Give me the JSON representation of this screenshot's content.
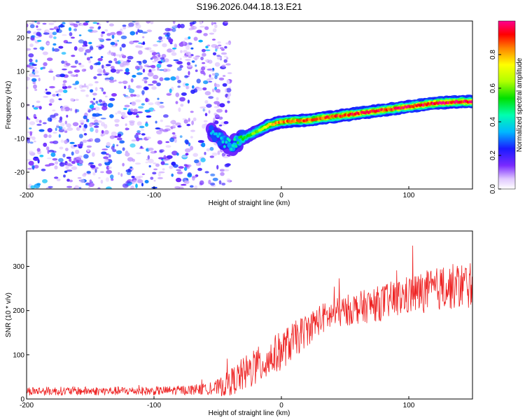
{
  "title": "S196.2026.044.18.13.E21",
  "chart_data": [
    {
      "type": "heatmap",
      "name": "spectrogram",
      "xlabel": "Height of straight line (km)",
      "ylabel": "Frequency (Hz)",
      "xlim": [
        -200,
        150
      ],
      "ylim": [
        -25,
        25
      ],
      "xticks": [
        -200,
        -100,
        0,
        100
      ],
      "yticks": [
        -20,
        -10,
        0,
        10,
        20
      ],
      "colorbar": {
        "label": "Normalized spectral amplitude",
        "range": [
          0,
          1
        ],
        "ticks": [
          0.0,
          0.2,
          0.4,
          0.6,
          0.8
        ]
      },
      "noise_region_x": [
        -200,
        -40
      ],
      "ridge": {
        "x": [
          -55,
          -45,
          -38,
          -30,
          -20,
          -10,
          0,
          20,
          40,
          60,
          80,
          100,
          120,
          140,
          150
        ],
        "freq_hz": [
          -8,
          -11,
          -12,
          -10,
          -8,
          -6,
          -5,
          -4.5,
          -3.5,
          -2.5,
          -1.5,
          -0.5,
          0.5,
          1,
          1
        ],
        "amplitude": [
          0.3,
          0.35,
          0.4,
          0.5,
          0.6,
          0.75,
          0.85,
          0.9,
          0.92,
          0.95,
          0.95,
          0.97,
          1.0,
          1.0,
          1.0
        ]
      }
    },
    {
      "type": "line",
      "name": "snr",
      "xlabel": "Height of straight line (km)",
      "ylabel": "SNR (10 * v/v)",
      "xlim": [
        -200,
        150
      ],
      "ylim": [
        0,
        380
      ],
      "xticks": [
        -200,
        -100,
        0,
        100
      ],
      "yticks": [
        0,
        100,
        200,
        300
      ],
      "series": [
        {
          "name": "SNR",
          "color": "#ee2222",
          "trend_x": [
            -200,
            -100,
            -55,
            -45,
            -30,
            -15,
            0,
            15,
            30,
            50,
            75,
            100,
            125,
            150
          ],
          "trend_y": [
            18,
            18,
            22,
            30,
            55,
            80,
            110,
            145,
            180,
            200,
            215,
            235,
            250,
            260
          ],
          "noise_amplitude": [
            10,
            10,
            12,
            25,
            40,
            45,
            45,
            40,
            35,
            35,
            40,
            45,
            50,
            55
          ]
        }
      ]
    }
  ]
}
